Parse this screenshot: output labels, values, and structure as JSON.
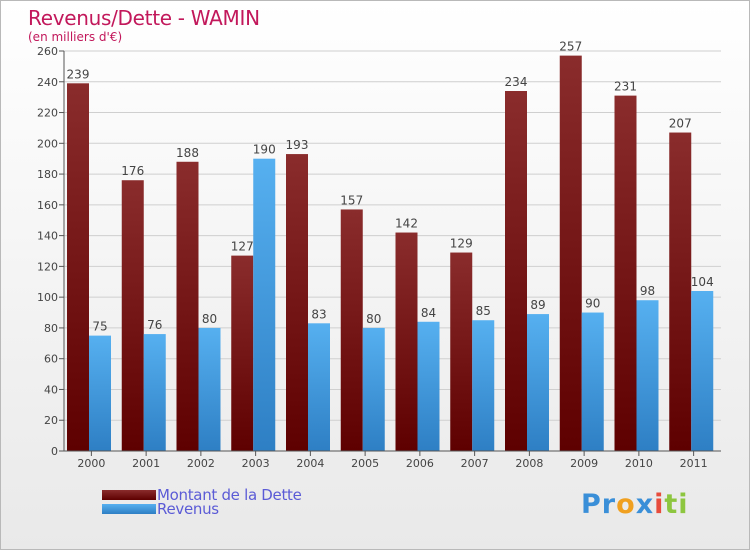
{
  "chart_data": {
    "type": "bar",
    "title": "Revenus/Dette - WAMIN",
    "subtitle": "(en milliers d'€)",
    "categories": [
      "2000",
      "2001",
      "2002",
      "2003",
      "2004",
      "2005",
      "2006",
      "2007",
      "2008",
      "2009",
      "2010",
      "2011"
    ],
    "series": [
      {
        "name": "Montant de la Dette",
        "color": "#7a1c1c",
        "values": [
          239,
          176,
          188,
          127,
          193,
          157,
          142,
          129,
          234,
          257,
          231,
          207
        ]
      },
      {
        "name": "Revenus",
        "color": "#4aa3e6",
        "values": [
          75,
          76,
          80,
          190,
          83,
          80,
          84,
          85,
          89,
          90,
          98,
          104
        ]
      }
    ],
    "ylim": [
      0,
      260
    ],
    "yticks": [
      0,
      20,
      40,
      60,
      80,
      100,
      120,
      140,
      160,
      180,
      200,
      220,
      240,
      260
    ],
    "grid": true,
    "legend_position": "bottom-left"
  },
  "logo": {
    "letters": [
      {
        "ch": "P",
        "color": "#3a8fd8"
      },
      {
        "ch": "r",
        "color": "#3a8fd8"
      },
      {
        "ch": "o",
        "color": "#f0a020"
      },
      {
        "ch": "x",
        "color": "#3a8fd8"
      },
      {
        "ch": "i",
        "color": "#e74c3c"
      },
      {
        "ch": "t",
        "color": "#8dc63f"
      },
      {
        "ch": "i",
        "color": "#8dc63f"
      }
    ]
  }
}
